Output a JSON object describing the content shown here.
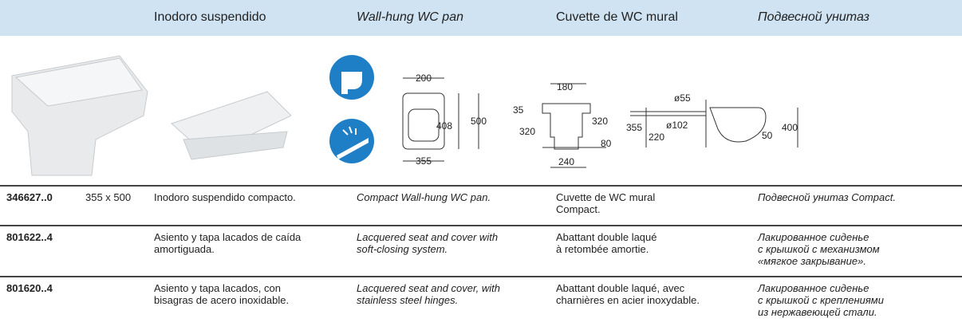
{
  "header": {
    "columns": [
      "Inodoro suspendido",
      "Wall-hung WC pan",
      "Cuvette de WC mural",
      "Подвесной унитаз"
    ]
  },
  "drawings": {
    "front": [
      "200",
      "408",
      "500",
      "355"
    ],
    "side": [
      "180",
      "35",
      "320",
      "320",
      "80",
      "240"
    ],
    "section": [
      "ø55",
      "355",
      "ø102",
      "220",
      "50",
      "400"
    ]
  },
  "table": {
    "rows": [
      [
        "346627..0",
        "355 x 500",
        [
          "Inodoro suspendido compacto."
        ],
        [
          "Compact Wall-hung WC pan."
        ],
        [
          "Cuvette de WC mural",
          "Compact."
        ],
        [
          "Подвесной унитаз Compact."
        ]
      ],
      [
        "801622..4",
        "",
        [
          "Asiento y tapa lacados de caída",
          "amortiguada."
        ],
        [
          "Lacquered seat and cover with",
          "soft-closing system."
        ],
        [
          "Abattant double laqué",
          "à retombée amortie."
        ],
        [
          "Лакированное сиденье",
          "с крышкой с механизмом",
          "«мягкое закрывание»."
        ]
      ],
      [
        "801620..4",
        "",
        [
          "Asiento y tapa lacados, con",
          "bisagras de acero inoxidable."
        ],
        [
          "Lacquered seat and cover, with",
          "stainless steel hinges."
        ],
        [
          "Abattant double laqué, avec",
          "charnières en acier inoxydable."
        ],
        [
          "Лакированное сиденье",
          "с крышкой с креплениями",
          "из нержавеющей стали."
        ]
      ]
    ]
  }
}
